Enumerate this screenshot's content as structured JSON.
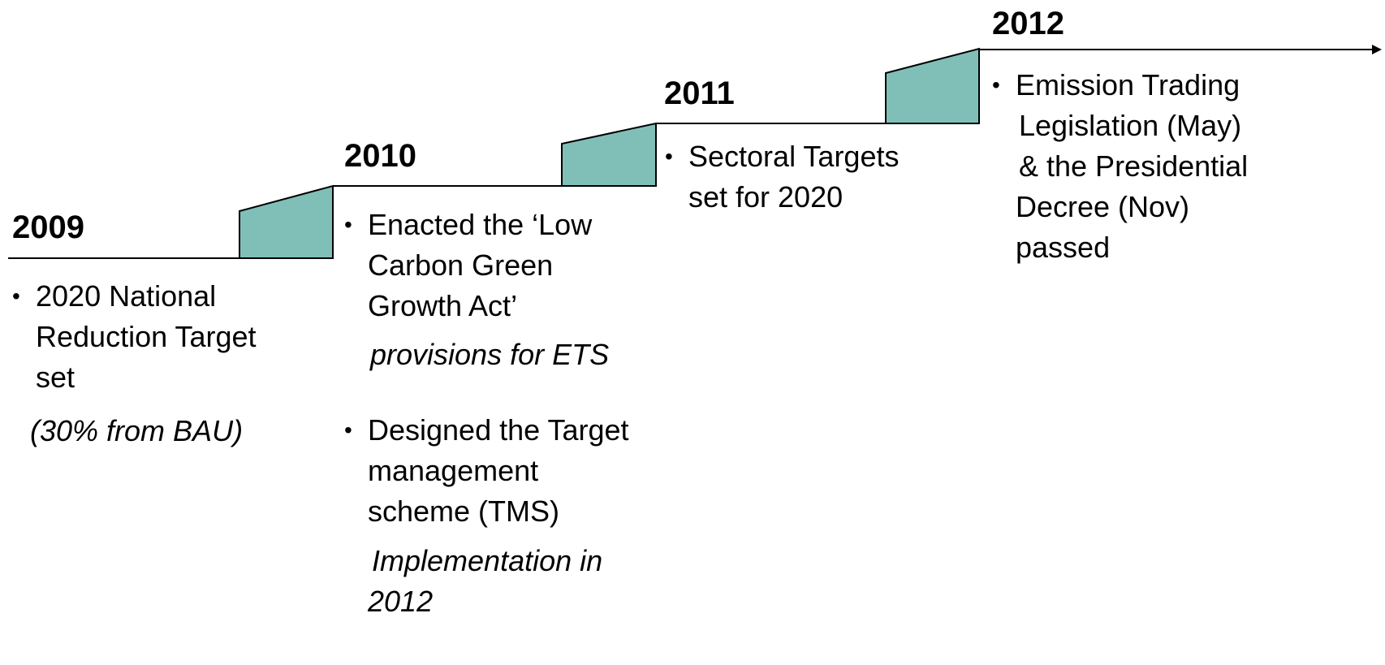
{
  "timeline": [
    {
      "year": "2009",
      "items": [
        {
          "lines": [
            "2020 National",
            "Reduction Target",
            "set"
          ],
          "note": [
            "(30% from BAU)"
          ]
        }
      ]
    },
    {
      "year": "2010",
      "items": [
        {
          "lines": [
            "Enacted the ‘Low",
            "Carbon Green",
            "Growth Act’"
          ],
          "note": [
            "provisions for ETS"
          ]
        },
        {
          "lines": [
            "Designed the Target",
            "management",
            "scheme (TMS)"
          ],
          "note": [
            "Implementation in",
            "2012"
          ]
        }
      ]
    },
    {
      "year": "2011",
      "items": [
        {
          "lines": [
            "Sectoral Targets",
            "set for 2020"
          ]
        }
      ]
    },
    {
      "year": "2012",
      "items": [
        {
          "lines": [
            "Emission Trading",
            "Legislation (May)",
            "& the Presidential",
            "Decree (Nov)",
            "passed"
          ]
        }
      ]
    }
  ],
  "colors": {
    "step_fill": "#80bfb8",
    "line": "#000000",
    "bullet_glyph": "•"
  }
}
